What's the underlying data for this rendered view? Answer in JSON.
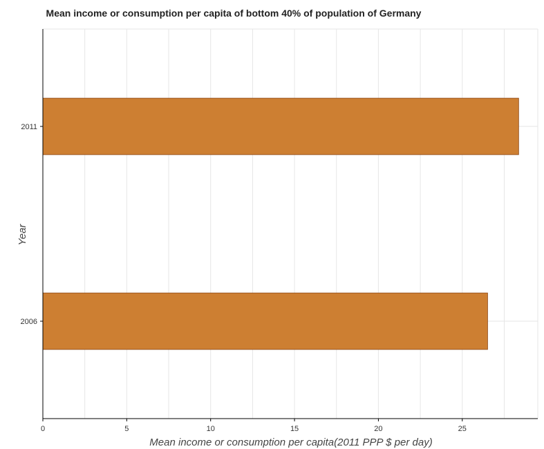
{
  "chart_data": {
    "type": "bar",
    "orientation": "horizontal",
    "title": "Mean income or consumption per capita of bottom 40% of population of Germany",
    "xlabel": "Mean income or consumption per capita(2011 PPP $ per day)",
    "ylabel": "Year",
    "categories": [
      "2006",
      "2011"
    ],
    "values": [
      26.51,
      28.36
    ],
    "xlim": [
      0,
      29.5
    ],
    "xticks": [
      0,
      5,
      10,
      15,
      20,
      25
    ],
    "xtick_labels": [
      "0",
      "5",
      "10",
      "15",
      "20",
      "25"
    ],
    "grid": true,
    "bar_color": "#cd7f32",
    "bar_edge_color": "#8b4513"
  }
}
